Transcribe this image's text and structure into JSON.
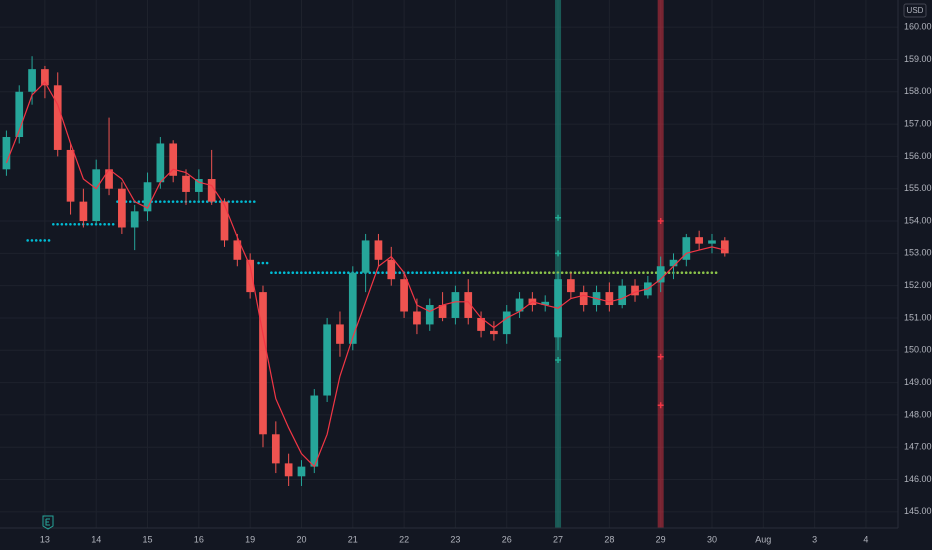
{
  "chart_data": {
    "type": "candlestick",
    "currency": "USD",
    "categories": [
      null,
      null,
      null,
      "13",
      null,
      null,
      null,
      "14",
      null,
      null,
      null,
      "15",
      null,
      null,
      null,
      "16",
      null,
      null,
      null,
      "19",
      null,
      null,
      null,
      "20",
      null,
      null,
      null,
      "21",
      null,
      null,
      null,
      "22",
      null,
      null,
      null,
      "23",
      null,
      null,
      null,
      "26",
      null,
      null,
      null,
      "27",
      null,
      null,
      null,
      "28",
      null,
      null,
      null,
      "29",
      null,
      null,
      null,
      "30",
      null,
      null,
      null,
      "Aug",
      null,
      null,
      null,
      "3",
      null,
      null,
      null,
      "4",
      null,
      null
    ],
    "open": [
      155.6,
      156.6,
      158.0,
      158.7,
      158.2,
      156.2,
      154.6,
      154.0,
      155.6,
      155.0,
      153.8,
      154.3,
      155.2,
      156.4,
      155.4,
      154.9,
      155.3,
      154.6,
      153.4,
      152.8,
      151.8,
      147.4,
      146.5,
      146.1,
      146.4,
      148.6,
      150.8,
      150.2,
      152.4,
      153.4,
      152.8,
      152.2,
      151.2,
      150.8,
      151.4,
      151.0,
      151.8,
      151.0,
      150.6,
      150.5,
      151.2,
      151.6,
      151.4,
      150.4,
      152.2,
      151.8,
      151.4,
      151.8,
      151.4,
      152.0,
      151.7,
      152.1,
      152.6,
      152.8,
      153.5,
      153.3,
      153.4,
      null,
      null,
      null,
      null,
      null,
      null,
      null,
      null,
      null,
      null,
      null,
      null,
      null
    ],
    "high": [
      156.8,
      158.2,
      159.1,
      158.8,
      158.6,
      156.4,
      155.0,
      155.9,
      157.2,
      155.2,
      154.5,
      155.5,
      156.6,
      156.5,
      155.6,
      155.6,
      156.2,
      154.7,
      153.6,
      153.0,
      152.0,
      147.8,
      146.8,
      146.6,
      148.8,
      151.0,
      151.2,
      152.6,
      153.6,
      153.6,
      153.2,
      152.4,
      151.6,
      151.6,
      151.8,
      152.0,
      152.2,
      151.2,
      150.9,
      151.4,
      151.8,
      151.8,
      151.7,
      152.4,
      152.4,
      152.0,
      152.0,
      152.1,
      152.2,
      152.2,
      152.3,
      152.9,
      153.0,
      153.6,
      153.7,
      153.6,
      153.5,
      null,
      null,
      null,
      null,
      null,
      null,
      null,
      null,
      null,
      null,
      null,
      null,
      null
    ],
    "low": [
      155.4,
      156.4,
      157.6,
      157.8,
      156.0,
      154.2,
      153.8,
      153.9,
      154.8,
      153.6,
      153.1,
      154.0,
      155.0,
      155.2,
      154.5,
      154.6,
      154.5,
      153.2,
      152.6,
      151.6,
      147.0,
      146.2,
      145.8,
      145.8,
      146.2,
      148.4,
      149.8,
      150.0,
      151.8,
      152.6,
      152.0,
      151.0,
      150.5,
      150.6,
      150.9,
      150.8,
      150.8,
      150.4,
      150.3,
      150.2,
      151.0,
      151.2,
      151.2,
      150.0,
      151.6,
      151.2,
      151.2,
      151.2,
      151.3,
      151.5,
      151.6,
      151.8,
      152.2,
      152.6,
      153.1,
      153.0,
      152.9,
      null,
      null,
      null,
      null,
      null,
      null,
      null,
      null,
      null,
      null,
      null,
      null,
      null
    ],
    "close": [
      156.6,
      158.0,
      158.7,
      158.2,
      156.2,
      154.6,
      154.0,
      155.6,
      155.0,
      153.8,
      154.3,
      155.2,
      156.4,
      155.4,
      154.9,
      155.3,
      154.6,
      153.4,
      152.8,
      151.8,
      147.4,
      146.5,
      146.1,
      146.4,
      148.6,
      150.8,
      150.2,
      152.4,
      153.4,
      152.8,
      152.2,
      151.2,
      150.8,
      151.4,
      151.0,
      151.8,
      151.0,
      150.6,
      150.5,
      151.2,
      151.6,
      151.4,
      151.5,
      152.2,
      151.8,
      151.4,
      151.8,
      151.4,
      152.0,
      151.7,
      152.1,
      152.6,
      152.8,
      153.5,
      153.3,
      153.4,
      153.0,
      null,
      null,
      null,
      null,
      null,
      null,
      null,
      null,
      null,
      null,
      null,
      null,
      null
    ],
    "up_color": "#26a69a",
    "down_color": "#ef5350",
    "line": {
      "color": "#f23645",
      "values": [
        155.8,
        156.8,
        157.9,
        158.3,
        157.6,
        156.4,
        155.3,
        155.0,
        155.6,
        155.3,
        154.6,
        154.4,
        155.2,
        155.6,
        155.5,
        155.2,
        155.1,
        154.5,
        153.5,
        152.6,
        150.5,
        148.5,
        147.6,
        146.8,
        146.4,
        147.4,
        149.2,
        150.4,
        151.5,
        152.6,
        152.9,
        152.4,
        151.4,
        151.2,
        151.4,
        151.5,
        151.5,
        151.0,
        150.7,
        151.0,
        151.2,
        151.5,
        151.4,
        151.3,
        151.6,
        151.7,
        151.6,
        151.5,
        151.6,
        151.8,
        151.9,
        152.2,
        152.6,
        153.0,
        153.1,
        153.2,
        153.1,
        null,
        null,
        null,
        null,
        null,
        null,
        null,
        null,
        null,
        null,
        null,
        null,
        null
      ]
    },
    "levels": [
      {
        "color": "#00bcd4",
        "values": [
          null,
          null,
          153.4,
          153.4,
          153.9,
          153.9,
          153.9,
          153.9,
          153.9,
          154.6,
          154.6,
          154.6,
          154.6,
          154.6,
          154.6,
          154.6,
          154.6,
          154.6,
          154.6,
          154.6,
          152.7,
          152.4,
          152.4,
          152.4,
          152.4,
          152.4,
          152.4,
          152.4,
          152.4,
          152.4,
          152.4,
          152.4,
          152.4,
          152.4,
          152.4,
          152.4,
          null,
          null,
          null,
          null,
          null,
          null,
          null,
          null,
          null,
          null,
          null,
          null,
          null,
          null,
          null,
          null,
          null,
          null,
          null,
          null,
          null,
          null,
          null,
          null,
          null,
          null,
          null,
          null,
          null,
          null,
          null,
          null,
          null,
          null
        ]
      },
      {
        "color": "#8bc34a",
        "values": [
          null,
          null,
          null,
          null,
          null,
          null,
          null,
          null,
          null,
          null,
          null,
          null,
          null,
          null,
          null,
          null,
          null,
          null,
          null,
          null,
          null,
          null,
          null,
          null,
          null,
          null,
          null,
          null,
          null,
          null,
          null,
          null,
          null,
          null,
          null,
          null,
          152.4,
          152.4,
          152.4,
          152.4,
          152.4,
          152.4,
          152.4,
          152.4,
          152.4,
          152.4,
          152.4,
          152.4,
          152.4,
          152.4,
          152.4,
          152.4,
          152.4,
          152.4,
          152.4,
          152.4,
          null,
          null,
          null,
          null,
          null,
          null,
          null,
          null,
          null,
          null,
          null,
          null,
          null,
          null
        ]
      }
    ],
    "signals": [
      {
        "color": "#22ab94",
        "at": 43,
        "values": [
          154.1,
          153.0,
          149.7
        ]
      },
      {
        "color": "#f23645",
        "at": 51,
        "values": [
          154.0,
          149.8,
          148.3
        ]
      }
    ],
    "ylim": [
      144.5,
      160.84
    ],
    "yticks": [
      {
        "value": 145,
        "label": "145.00"
      },
      {
        "value": 146,
        "label": "146.00"
      },
      {
        "value": 147,
        "label": "147.00"
      },
      {
        "value": 148,
        "label": "148.00"
      },
      {
        "value": 149,
        "label": "149.00"
      },
      {
        "value": 150,
        "label": "150.00"
      },
      {
        "value": 151,
        "label": "151.00"
      },
      {
        "value": 152,
        "label": "152.00"
      },
      {
        "value": 153,
        "label": "153.00"
      },
      {
        "value": 154,
        "label": "154.00"
      },
      {
        "value": 155,
        "label": "155.00"
      },
      {
        "value": 156,
        "label": "156.00"
      },
      {
        "value": 157,
        "label": "157.00"
      },
      {
        "value": 158,
        "label": "158.00"
      },
      {
        "value": 159,
        "label": "159.00"
      },
      {
        "value": 160,
        "label": "160.00"
      }
    ],
    "grid": true
  }
}
